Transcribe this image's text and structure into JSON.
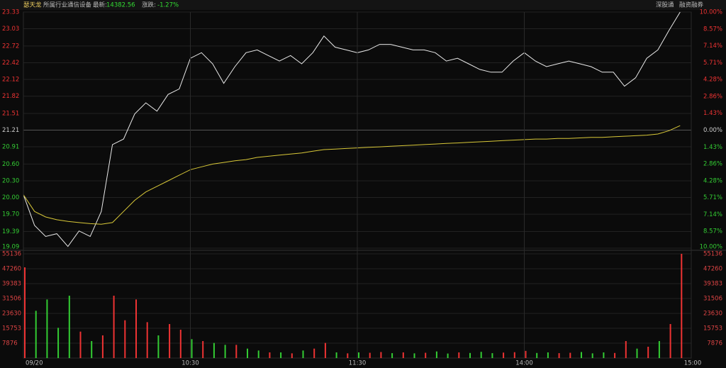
{
  "header": {
    "name": "瑟天龙",
    "industry_label": "所属行业",
    "industry": "通信设备",
    "latest_label": "最新:",
    "latest": "14382.56",
    "change_label": "涨跌:",
    "change": "-1.27%",
    "links": [
      "深股通",
      "融资融券"
    ]
  },
  "chart_data": [
    {
      "type": "line",
      "up_color": "#ee3333",
      "down_color": "#33cc33",
      "flat_color": "#cccccc",
      "x": [
        0,
        4,
        8,
        12,
        16,
        20,
        24,
        28,
        32,
        36,
        40,
        44,
        48,
        52,
        56,
        60,
        64,
        68,
        72,
        76,
        80,
        84,
        88,
        92,
        96,
        100,
        104,
        108,
        112,
        116,
        120,
        124,
        128,
        132,
        136,
        140,
        144,
        148,
        152,
        156,
        160,
        164,
        168,
        172,
        176,
        180,
        184,
        188,
        192,
        196,
        200,
        204,
        208,
        212,
        216,
        220,
        224,
        228,
        232,
        236
      ],
      "xlim": [
        0,
        240
      ],
      "ylim": [
        19.09,
        23.33
      ],
      "yticks": [
        23.33,
        23.03,
        22.72,
        22.42,
        22.12,
        21.82,
        21.51,
        21.21,
        20.91,
        {
          "value": 20.6,
          "label": "20.60"
        },
        {
          "value": 20.3,
          "label": "20.30"
        },
        {
          "value": 20,
          "label": "20.00"
        },
        {
          "value": 19.7,
          "label": "19.70"
        },
        19.39,
        19.09
      ],
      "y2lim": [
        -10,
        10
      ],
      "y2ticks": [
        {
          "value": 10,
          "label": "10.00%"
        },
        {
          "value": 8.57,
          "label": "8.57%"
        },
        {
          "value": 7.14,
          "label": "7.14%"
        },
        {
          "value": 5.71,
          "label": "5.71%"
        },
        {
          "value": 4.28,
          "label": "4.28%"
        },
        {
          "value": 2.86,
          "label": "2.86%"
        },
        {
          "value": 1.43,
          "label": "1.43%"
        },
        {
          "value": 0,
          "label": "0.00%"
        },
        {
          "value": -1.43,
          "label": "1.43%"
        },
        {
          "value": -2.86,
          "label": "2.86%"
        },
        {
          "value": -4.28,
          "label": "4.28%"
        },
        {
          "value": -5.71,
          "label": "5.71%"
        },
        {
          "value": -7.14,
          "label": "7.14%"
        },
        {
          "value": -8.57,
          "label": "8.57%"
        },
        {
          "value": -10,
          "label": "10.00%"
        }
      ],
      "series": [
        {
          "color": "#e8e8e8",
          "values": [
            20.05,
            19.5,
            19.3,
            19.35,
            19.12,
            19.4,
            19.3,
            19.75,
            20.95,
            21.05,
            21.5,
            21.7,
            21.55,
            21.85,
            21.95,
            22.5,
            22.6,
            22.4,
            22.05,
            22.35,
            22.6,
            22.65,
            22.55,
            22.45,
            22.55,
            22.4,
            22.6,
            22.9,
            22.7,
            22.65,
            22.6,
            22.65,
            22.75,
            22.75,
            22.7,
            22.65,
            22.65,
            22.6,
            22.45,
            22.5,
            22.4,
            22.3,
            22.25,
            22.25,
            22.45,
            22.6,
            22.45,
            22.35,
            22.4,
            22.45,
            22.4,
            22.35,
            22.25,
            22.25,
            22.0,
            22.15,
            22.5,
            22.65,
            23.0,
            23.33
          ]
        },
        {
          "color": "#d8c838",
          "values": [
            20.05,
            19.75,
            19.65,
            19.6,
            19.57,
            19.55,
            19.53,
            19.52,
            19.55,
            19.75,
            19.95,
            20.1,
            20.2,
            20.3,
            20.4,
            20.5,
            20.55,
            20.6,
            20.63,
            20.66,
            20.68,
            20.72,
            20.74,
            20.76,
            20.78,
            20.8,
            20.83,
            20.86,
            20.87,
            20.88,
            20.89,
            20.9,
            20.91,
            20.92,
            20.93,
            20.94,
            20.95,
            20.96,
            20.97,
            20.98,
            20.99,
            21.0,
            21.01,
            21.02,
            21.03,
            21.04,
            21.05,
            21.05,
            21.06,
            21.06,
            21.07,
            21.08,
            21.08,
            21.09,
            21.1,
            21.11,
            21.12,
            21.14,
            21.2,
            21.29
          ]
        }
      ]
    },
    {
      "type": "bar",
      "tick_color": "#dd4444",
      "xticks": [
        {
          "value": 0,
          "label": "09/20"
        },
        {
          "value": 60,
          "label": "10:30"
        },
        {
          "value": 120,
          "label": "11:30"
        },
        {
          "value": 180,
          "label": "14:00"
        },
        {
          "value": 240,
          "label": "15:00"
        }
      ],
      "ylim": [
        0,
        55136
      ],
      "yticks": [
        55136,
        47260,
        39383,
        31506,
        23630,
        15753,
        7876
      ],
      "values": [
        48000,
        25000,
        31000,
        16000,
        33000,
        14000,
        9000,
        12000,
        33000,
        20000,
        31000,
        19000,
        12000,
        18000,
        15000,
        10000,
        9000,
        8000,
        7000,
        7000,
        5000,
        4000,
        3000,
        3000,
        2500,
        4000,
        5000,
        8000,
        3000,
        2500,
        3000,
        2800,
        3200,
        2600,
        3000,
        2500,
        2800,
        3500,
        2400,
        3000,
        2700,
        3300,
        2600,
        2900,
        3100,
        3800,
        2700,
        3000,
        2600,
        2800,
        3200,
        2500,
        3000,
        2700,
        9000,
        5000,
        6000,
        9000,
        18000,
        55136
      ],
      "colors": [
        "#ee3333",
        "#33cc33",
        "#33cc33",
        "#33cc33",
        "#33cc33",
        "#ee3333",
        "#33cc33",
        "#ee3333",
        "#ee3333",
        "#ee3333",
        "#ee3333",
        "#ee3333",
        "#33cc33",
        "#ee3333",
        "#ee3333",
        "#33cc33",
        "#ee3333",
        "#33cc33",
        "#33cc33",
        "#ee3333",
        "#33cc33",
        "#33cc33",
        "#ee3333",
        "#33cc33",
        "#ee3333",
        "#33cc33",
        "#ee3333",
        "#ee3333",
        "#33cc33",
        "#ee3333",
        "#33cc33",
        "#ee3333",
        "#ee3333",
        "#33cc33",
        "#ee3333",
        "#33cc33",
        "#ee3333",
        "#33cc33",
        "#33cc33",
        "#ee3333",
        "#33cc33",
        "#33cc33",
        "#33cc33",
        "#ee3333",
        "#ee3333",
        "#ee3333",
        "#33cc33",
        "#33cc33",
        "#ee3333",
        "#ee3333",
        "#33cc33",
        "#33cc33",
        "#33cc33",
        "#ee3333",
        "#ee3333",
        "#33cc33",
        "#ee3333",
        "#33cc33",
        "#ee3333",
        "#ee3333"
      ]
    }
  ]
}
